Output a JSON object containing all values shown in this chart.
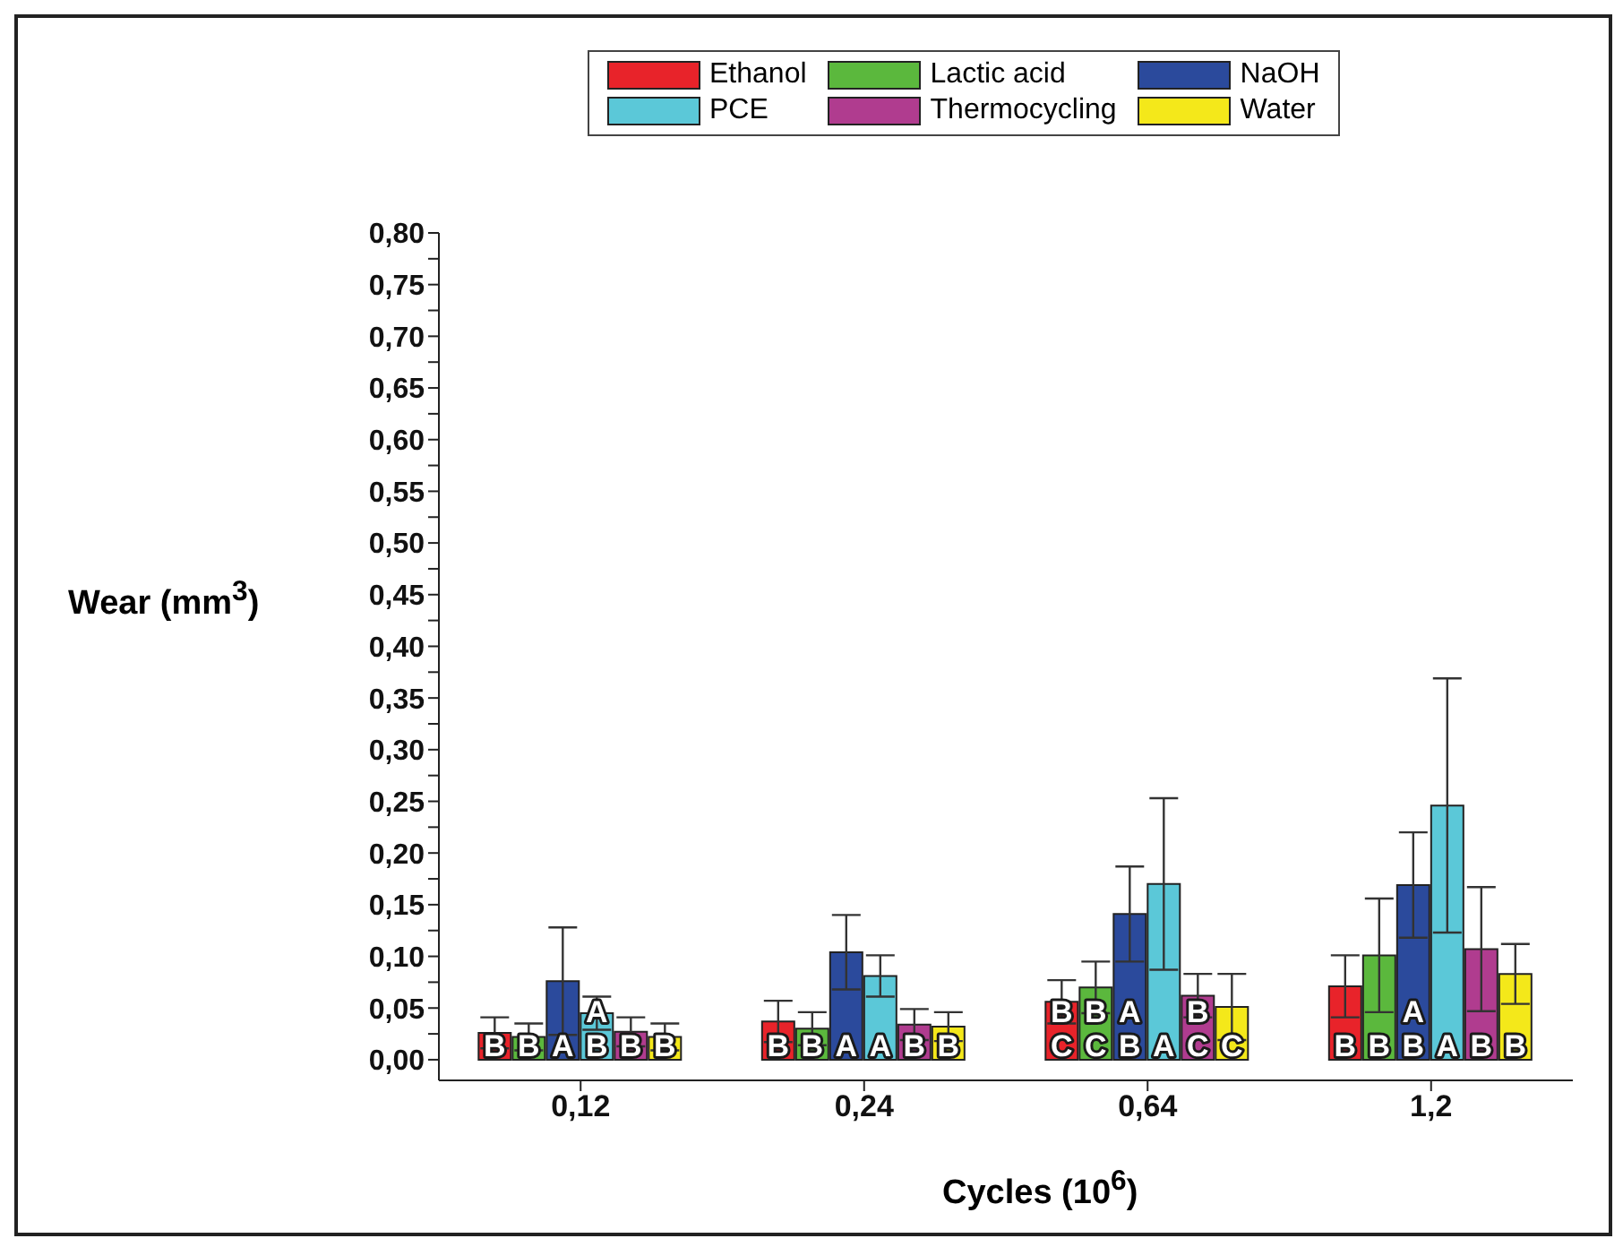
{
  "chart_data": {
    "type": "bar",
    "xlabel": "Cycles (10$^{6}$)",
    "ylabel": "Wear (mm$^{3}$)",
    "categories": [
      "0,12",
      "0,24",
      "0,64",
      "1,2"
    ],
    "series": [
      {
        "name": "Ethanol",
        "color": "#e8232a",
        "values": [
          0.026,
          0.037,
          0.056,
          0.071
        ],
        "errors": [
          0.015,
          0.02,
          0.021,
          0.03
        ],
        "value_labels": [
          "B",
          "B",
          "B\nC",
          "B"
        ]
      },
      {
        "name": "Lactic acid",
        "color": "#5bb83d",
        "values": [
          0.022,
          0.03,
          0.07,
          0.101
        ],
        "errors": [
          0.013,
          0.016,
          0.025,
          0.055
        ],
        "value_labels": [
          "B",
          "B",
          "B\nC",
          "B"
        ]
      },
      {
        "name": "NaOH",
        "color": "#2b4a9c",
        "values": [
          0.076,
          0.104,
          0.141,
          0.169
        ],
        "errors": [
          0.052,
          0.036,
          0.046,
          0.051
        ],
        "value_labels": [
          "A",
          "A",
          "A\nB",
          "A\nB"
        ]
      },
      {
        "name": "PCE",
        "color": "#5bc8d8",
        "values": [
          0.045,
          0.081,
          0.17,
          0.246
        ],
        "errors": [
          0.016,
          0.02,
          0.083,
          0.123
        ],
        "value_labels": [
          "A\nB",
          "A",
          "A",
          "A"
        ]
      },
      {
        "name": "Thermocycling",
        "color": "#b03c8f",
        "values": [
          0.027,
          0.034,
          0.062,
          0.107
        ],
        "errors": [
          0.014,
          0.015,
          0.021,
          0.06
        ],
        "value_labels": [
          "B",
          "B",
          "B\nC",
          "B"
        ]
      },
      {
        "name": "Water",
        "color": "#f4e81a",
        "values": [
          0.022,
          0.032,
          0.051,
          0.083
        ],
        "errors": [
          0.013,
          0.014,
          0.032,
          0.029
        ],
        "value_labels": [
          "B",
          "B",
          "C",
          "B"
        ]
      }
    ],
    "ylim": [
      -0.02,
      0.8
    ],
    "yticks": [
      {
        "value": 0,
        "label": "0,00"
      },
      {
        "value": 0.025,
        "label": null
      },
      {
        "value": 0.05,
        "label": "0,05"
      },
      {
        "value": 0.075,
        "label": null
      },
      {
        "value": 0.1,
        "label": "0,10"
      },
      {
        "value": 0.125,
        "label": null
      },
      {
        "value": 0.15,
        "label": "0,15"
      },
      {
        "value": 0.175,
        "label": null
      },
      {
        "value": 0.2,
        "label": "0,20"
      },
      {
        "value": 0.225,
        "label": null
      },
      {
        "value": 0.25,
        "label": "0,25"
      },
      {
        "value": 0.275,
        "label": null
      },
      {
        "value": 0.3,
        "label": "0,30"
      },
      {
        "value": 0.325,
        "label": null
      },
      {
        "value": 0.35,
        "label": "0,35"
      },
      {
        "value": 0.375,
        "label": null
      },
      {
        "value": 0.4,
        "label": "0,40"
      },
      {
        "value": 0.425,
        "label": null
      },
      {
        "value": 0.45,
        "label": "0,45"
      },
      {
        "value": 0.475,
        "label": null
      },
      {
        "value": 0.5,
        "label": "0,50"
      },
      {
        "value": 0.525,
        "label": null
      },
      {
        "value": 0.55,
        "label": "0,55"
      },
      {
        "value": 0.575,
        "label": null
      },
      {
        "value": 0.6,
        "label": "0,60"
      },
      {
        "value": 0.625,
        "label": null
      },
      {
        "value": 0.65,
        "label": "0,65"
      },
      {
        "value": 0.675,
        "label": null
      },
      {
        "value": 0.7,
        "label": "0,70"
      },
      {
        "value": 0.725,
        "label": null
      },
      {
        "value": 0.75,
        "label": "0,75"
      },
      {
        "value": 0.775,
        "label": null
      },
      {
        "value": 0.8,
        "label": "0,80"
      }
    ],
    "legend": "top",
    "grid": false
  }
}
